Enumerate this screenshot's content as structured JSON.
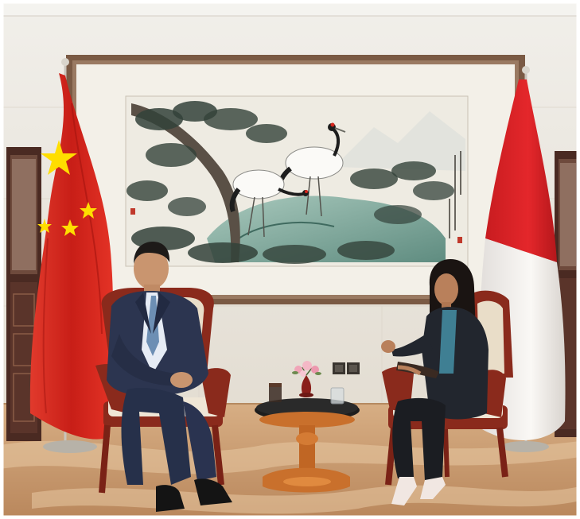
{
  "scene": {
    "colors": {
      "wall": "#e9e5dd",
      "wall_shadow": "#d8d2c7",
      "ceiling": "#f1efea",
      "floor": "#c89a6e",
      "floor_light": "#e2c09a",
      "frame": "#7a5a44",
      "mat": "#f2efe6",
      "paper": "#efece3",
      "pine": "#3b4a3e",
      "rock": "#7fa69a",
      "china_red": "#d6261e",
      "china_star": "#ffde00",
      "indonesia_red": "#e2262b",
      "indonesia_white": "#f6f4f1",
      "chair_wood": "#8a2a1c",
      "chair_cushion": "#efe6d6",
      "suit_navy": "#2c3550",
      "blazer_dark": "#22262e",
      "top_teal": "#3f7f93",
      "table_glass": "#1d1d1d",
      "table_wood": "#c9702c",
      "flowers_pink": "#f0a5b8",
      "cabinet": "#4a2a22"
    },
    "objects": [
      "calligraphy-painting-red-crowned-cranes-and-pines",
      "china-flag",
      "indonesia-flag",
      "left-armchair",
      "right-armchair",
      "man-in-navy-suit",
      "woman-in-dark-blazer",
      "round-coffee-table",
      "flower-vase",
      "water-glass",
      "wall-power-outlet",
      "display-cabinet-left",
      "display-cabinet-right"
    ]
  }
}
